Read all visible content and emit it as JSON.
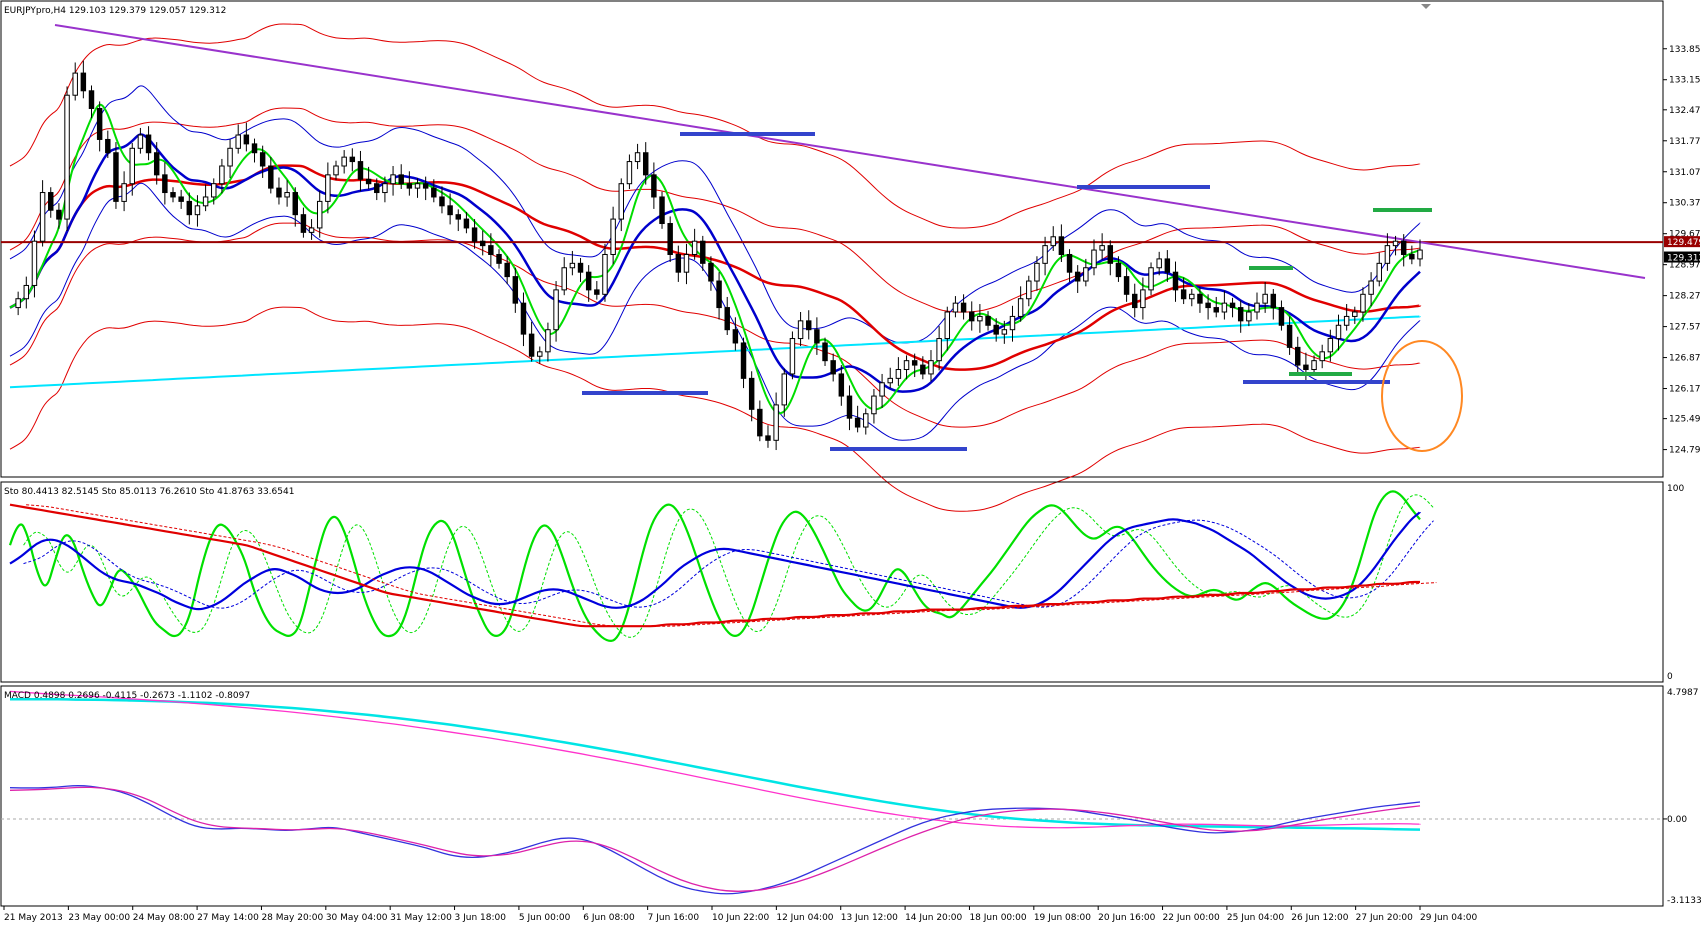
{
  "chart_data": [
    {
      "type": "candlestick",
      "header": "EURJPYpro,H4  129.103 129.379 129.057 129.312",
      "price_scale": [
        "133.850",
        "133.150",
        "132.470",
        "131.770",
        "131.070",
        "130.370",
        "129.670",
        "128.970",
        "128.270",
        "127.570",
        "126.870",
        "126.170",
        "125.490",
        "124.790"
      ],
      "ylim": [
        124.6,
        134.5
      ],
      "current_price_boxes": [
        "129.479",
        "129.312"
      ],
      "current_price": 129.312,
      "resistance_price": 129.479,
      "x_labels": [
        "21 May 2013",
        "23 May 00:00",
        "24 May 08:00",
        "27 May 14:00",
        "28 May 20:00",
        "30 May 04:00",
        "31 May 12:00",
        "3 Jun 18:00",
        "5 Jun 00:00",
        "6 Jun 08:00",
        "7 Jun 16:00",
        "10 Jun 22:00",
        "12 Jun 04:00",
        "13 Jun 12:00",
        "14 Jun 20:00",
        "18 Jun 00:00",
        "19 Jun 08:00",
        "20 Jun 16:00",
        "22 Jun 00:00",
        "25 Jun 04:00",
        "26 Jun 12:00",
        "27 Jun 20:00",
        "29 Jun 04:00"
      ],
      "close_path": [
        128.0,
        128.2,
        128.5,
        129.5,
        130.6,
        130.2,
        130.0,
        132.8,
        133.3,
        132.9,
        132.5,
        131.8,
        131.5,
        130.4,
        130.8,
        131.6,
        131.9,
        131.5,
        131.0,
        130.6,
        130.5,
        130.4,
        130.1,
        130.3,
        130.5,
        130.8,
        131.2,
        131.6,
        131.9,
        131.7,
        131.5,
        131.2,
        130.7,
        130.5,
        130.6,
        130.1,
        129.7,
        129.8,
        130.4,
        131.0,
        131.2,
        131.4,
        131.3,
        130.9,
        130.8,
        130.6,
        130.8,
        131.0,
        130.8,
        130.7,
        130.8,
        130.7,
        130.5,
        130.3,
        130.1,
        130.0,
        129.8,
        129.5,
        129.4,
        129.2,
        129.0,
        128.7,
        128.1,
        127.4,
        126.9,
        127.0,
        127.5,
        128.4,
        128.9,
        129.0,
        128.8,
        128.4,
        128.3,
        129.2,
        130.0,
        130.8,
        131.3,
        131.5,
        131.0,
        130.5,
        129.9,
        129.2,
        128.8,
        129.2,
        129.5,
        129.0,
        128.6,
        128.0,
        127.5,
        127.2,
        126.4,
        125.7,
        125.1,
        125.0,
        125.8,
        126.5,
        127.3,
        127.7,
        127.5,
        127.2,
        126.8,
        126.5,
        126.0,
        125.5,
        125.3,
        125.6,
        126.0,
        126.3,
        126.4,
        126.6,
        126.8,
        126.7,
        126.5,
        126.8,
        127.3,
        127.9,
        128.1,
        127.9,
        127.7,
        127.8,
        127.6,
        127.4,
        127.5,
        127.8,
        128.2,
        128.6,
        129.0,
        129.4,
        129.6,
        129.2,
        128.8,
        128.6,
        128.9,
        129.3,
        129.4,
        129.0,
        128.7,
        128.3,
        128.0,
        128.4,
        128.9,
        129.1,
        128.8,
        128.4,
        128.2,
        128.3,
        128.1,
        128.0,
        127.9,
        128.1,
        128.0,
        127.7,
        127.9,
        128.1,
        128.3,
        128.0,
        127.6,
        127.1,
        126.7,
        126.6,
        126.8,
        127.0,
        127.3,
        127.6,
        127.8,
        127.9,
        128.3,
        128.6,
        129.0,
        129.4,
        129.5,
        129.2,
        129.1,
        129.3
      ],
      "trendlines": [
        "descending resistance (violet)"
      ],
      "levels": [
        "horizontal resistance 129.479 (dark red)"
      ],
      "annotations": [
        "blue horizontal markers",
        "green horizontal markers",
        "orange ellipse"
      ]
    },
    {
      "type": "line",
      "header": "Sto 80.4413 82.5145  Sto 85.0113 76.2610  Sto 41.8763 33.6541",
      "scale_top": "100",
      "scale_bottom": "0",
      "ylim": [
        0,
        100
      ],
      "series": [
        {
          "color": "#00e000",
          "values": [
            70,
            85,
            75,
            55,
            45,
            62,
            77,
            73,
            57,
            44,
            35,
            45,
            58,
            54,
            47,
            37,
            28,
            24,
            20,
            22,
            33,
            55,
            72,
            82,
            80,
            72,
            62,
            45,
            33,
            25,
            22,
            20,
            25,
            44,
            65,
            82,
            87,
            78,
            62,
            44,
            31,
            22,
            20,
            23,
            35,
            55,
            73,
            82,
            84,
            76,
            60,
            44,
            32,
            22,
            20,
            25,
            40,
            60,
            75,
            82,
            78,
            66,
            51,
            38,
            28,
            22,
            18,
            18,
            28,
            46,
            66,
            82,
            90,
            93,
            88,
            77,
            63,
            48,
            35,
            25,
            20,
            22,
            32,
            48,
            64,
            78,
            86,
            89,
            85,
            77,
            67,
            56,
            46,
            40,
            35,
            34,
            40,
            50,
            58,
            55,
            46,
            38,
            34,
            33,
            30,
            34,
            40,
            46,
            52,
            58,
            65,
            72,
            79,
            85,
            89,
            92,
            91,
            86,
            80,
            75,
            73,
            76,
            80,
            80,
            75,
            68,
            61,
            55,
            50,
            46,
            43,
            42,
            44,
            46,
            45,
            41,
            40,
            44,
            48,
            50,
            47,
            42,
            38,
            35,
            32,
            30,
            30,
            34,
            42,
            55,
            72,
            88,
            97,
            100,
            97,
            90,
            84
          ]
        },
        {
          "color": "#0000dd",
          "values": [
            60,
            63,
            67,
            71,
            73,
            73,
            71,
            68,
            64,
            60,
            56,
            53,
            51,
            50,
            49,
            47,
            45,
            43,
            40,
            38,
            36,
            35,
            36,
            38,
            41,
            45,
            49,
            52,
            55,
            57,
            57,
            55,
            53,
            50,
            47,
            45,
            44,
            44,
            45,
            47,
            50,
            53,
            55,
            57,
            58,
            58,
            57,
            55,
            52,
            49,
            46,
            43,
            41,
            39,
            38,
            38,
            39,
            41,
            43,
            45,
            46,
            46,
            45,
            43,
            41,
            39,
            37,
            36,
            36,
            37,
            39,
            42,
            46,
            50,
            55,
            59,
            62,
            65,
            67,
            68,
            68,
            67,
            66,
            65,
            64,
            63,
            62,
            61,
            60,
            59,
            58,
            57,
            56,
            55,
            54,
            53,
            52,
            51,
            50,
            49,
            48,
            47,
            46,
            45,
            44,
            43,
            42,
            41,
            40,
            39,
            38,
            37,
            36,
            36,
            37,
            39,
            42,
            46,
            51,
            56,
            61,
            66,
            71,
            75,
            78,
            80,
            81,
            82,
            83,
            84,
            84,
            83,
            82,
            80,
            78,
            75,
            72,
            69,
            66,
            62,
            58,
            54,
            50,
            47,
            44,
            42,
            41,
            41,
            42,
            44,
            47,
            52,
            58,
            65,
            72,
            78,
            84,
            88
          ]
        },
        {
          "color": "#e00000",
          "values": [
            92,
            91,
            90,
            89,
            88,
            87,
            86,
            85,
            84,
            83,
            82,
            81,
            80,
            79,
            78,
            77,
            76,
            75,
            74,
            73,
            72,
            71,
            70,
            68,
            66,
            64,
            62,
            60,
            58,
            56,
            54,
            52,
            50,
            48,
            46,
            44,
            43,
            42,
            41,
            40,
            39,
            38,
            37,
            36,
            35,
            34,
            33,
            32,
            31,
            30,
            29,
            28,
            27,
            26,
            26,
            26,
            26,
            26,
            26,
            26,
            26,
            27,
            27,
            27,
            28,
            28,
            28,
            29,
            29,
            29,
            30,
            30,
            30,
            31,
            31,
            31,
            32,
            32,
            32,
            33,
            33,
            33,
            34,
            34,
            34,
            35,
            35,
            35,
            35,
            35,
            36,
            36,
            36,
            37,
            37,
            37,
            38,
            38,
            38,
            39,
            39,
            39,
            40,
            40,
            40,
            41,
            41,
            41,
            42,
            42,
            42,
            43,
            43,
            43,
            44,
            44,
            44,
            45,
            45,
            46,
            46,
            46,
            47,
            47,
            47,
            48,
            48,
            49,
            49,
            49,
            50,
            50
          ]
        }
      ]
    },
    {
      "type": "line",
      "header": "MACD 0.4898 0.2696 -0.4115 -0.2673 -1.1102 -0.8097",
      "scale_top": "4.7987",
      "scale_zero": "0.00",
      "scale_bottom": "-3.1133",
      "ylim": [
        -3.1133,
        4.7987
      ],
      "series": [
        {
          "color": "#00e5e5",
          "values": [
            4.6,
            4.6,
            4.6,
            4.59,
            4.58,
            4.57,
            4.56,
            4.54,
            4.52,
            4.5,
            4.47,
            4.44,
            4.4,
            4.36,
            4.31,
            4.26,
            4.2,
            4.14,
            4.07,
            4.0,
            3.92,
            3.84,
            3.75,
            3.66,
            3.56,
            3.46,
            3.35,
            3.24,
            3.12,
            3.0,
            2.88,
            2.75,
            2.62,
            2.49,
            2.35,
            2.21,
            2.07,
            1.93,
            1.79,
            1.65,
            1.51,
            1.37,
            1.23,
            1.1,
            0.97,
            0.84,
            0.72,
            0.6,
            0.49,
            0.38,
            0.28,
            0.19,
            0.11,
            0.04,
            -0.02,
            -0.07,
            -0.12,
            -0.16,
            -0.19,
            -0.22,
            -0.24,
            -0.26,
            -0.27,
            -0.28,
            -0.29,
            -0.3,
            -0.31,
            -0.32,
            -0.33,
            -0.34,
            -0.35,
            -0.36,
            -0.37,
            -0.38,
            -0.4,
            -0.41
          ]
        },
        {
          "color": "#ff33cc",
          "values": [
            4.9,
            4.85,
            4.8,
            4.76,
            4.72,
            4.68,
            4.63,
            4.58,
            4.53,
            4.48,
            4.42,
            4.36,
            4.3,
            4.23,
            4.16,
            4.09,
            4.01,
            3.93,
            3.84,
            3.75,
            3.66,
            3.56,
            3.46,
            3.35,
            3.24,
            3.13,
            3.01,
            2.89,
            2.76,
            2.63,
            2.5,
            2.36,
            2.22,
            2.08,
            1.93,
            1.78,
            1.63,
            1.48,
            1.33,
            1.18,
            1.03,
            0.88,
            0.74,
            0.6,
            0.47,
            0.34,
            0.22,
            0.11,
            0.01,
            -0.08,
            -0.16,
            -0.22,
            -0.28,
            -0.31,
            -0.33,
            -0.34,
            -0.33,
            -0.31,
            -0.28,
            -0.25,
            -0.22,
            -0.2,
            -0.2,
            -0.21,
            -0.23,
            -0.25,
            -0.27,
            -0.27,
            -0.26,
            -0.24,
            -0.22,
            -0.2,
            -0.19,
            -0.18,
            -0.2
          ]
        },
        {
          "color": "#3333dd",
          "values": [
            1.2,
            1.18,
            1.22,
            1.3,
            1.2,
            1.0,
            0.6,
            0.1,
            -0.3,
            -0.4,
            -0.35,
            -0.4,
            -0.45,
            -0.38,
            -0.3,
            -0.5,
            -0.7,
            -0.9,
            -1.1,
            -1.4,
            -1.5,
            -1.4,
            -1.2,
            -0.9,
            -0.7,
            -0.8,
            -1.2,
            -1.7,
            -2.2,
            -2.6,
            -2.8,
            -2.9,
            -2.8,
            -2.6,
            -2.3,
            -1.9,
            -1.5,
            -1.1,
            -0.7,
            -0.3,
            0.0,
            0.2,
            0.35,
            0.4,
            0.42,
            0.4,
            0.35,
            0.2,
            0.05,
            -0.1,
            -0.3,
            -0.45,
            -0.55,
            -0.5,
            -0.4,
            -0.2,
            0.0,
            0.15,
            0.3,
            0.45,
            0.55,
            0.65
          ]
        },
        {
          "color": "#dd22aa",
          "values": [
            1.1,
            1.12,
            1.16,
            1.22,
            1.2,
            1.05,
            0.75,
            0.3,
            -0.1,
            -0.3,
            -0.35,
            -0.38,
            -0.42,
            -0.4,
            -0.35,
            -0.45,
            -0.62,
            -0.82,
            -1.02,
            -1.25,
            -1.42,
            -1.42,
            -1.3,
            -1.05,
            -0.85,
            -0.85,
            -1.1,
            -1.5,
            -1.95,
            -2.35,
            -2.62,
            -2.78,
            -2.78,
            -2.66,
            -2.44,
            -2.14,
            -1.78,
            -1.4,
            -1.02,
            -0.66,
            -0.34,
            -0.06,
            0.14,
            0.28,
            0.36,
            0.38,
            0.36,
            0.28,
            0.16,
            0.02,
            -0.14,
            -0.3,
            -0.44,
            -0.48,
            -0.44,
            -0.32,
            -0.16,
            0.0,
            0.14,
            0.28,
            0.4,
            0.5
          ]
        }
      ]
    }
  ],
  "colors": {
    "bull_candle": "#ffffff",
    "bear_candle": "#000000",
    "ma_red": "#e00000",
    "ma_blue": "#0000cc",
    "ma_green": "#00dd00",
    "ma_cyan": "#00e5ff",
    "trendline": "#9933cc",
    "resistance": "#990000",
    "marker_blue": "#3344cc",
    "marker_green": "#22aa44",
    "ellipse": "#ff8822"
  }
}
